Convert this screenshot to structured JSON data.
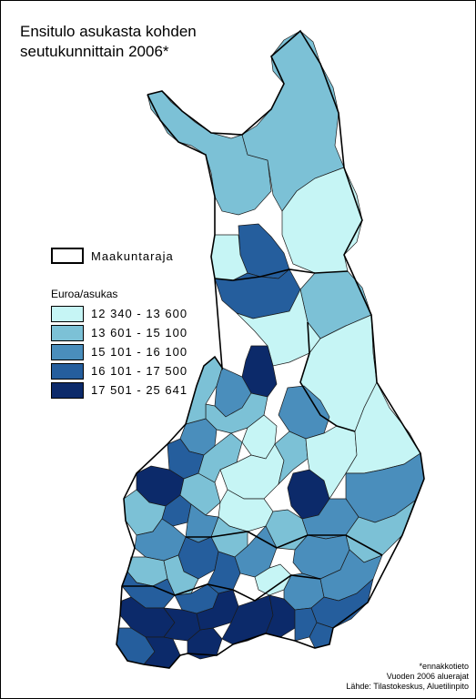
{
  "title": {
    "line1": "Ensitulo asukasta kohden",
    "line2": "seutukunnittain 2006*"
  },
  "legend": {
    "border_label": "Maakuntaraja",
    "heading": "Euroa/asukas",
    "classes": [
      {
        "label": "12 340 - 13 600",
        "color": "#c6f5f5"
      },
      {
        "label": "13 601 - 15 100",
        "color": "#7cc1d6"
      },
      {
        "label": "15 101 - 16 100",
        "color": "#4a8ebc"
      },
      {
        "label": "16 101 - 17 500",
        "color": "#255e9d"
      },
      {
        "label": "17 501 - 25 641",
        "color": "#0c2a6a"
      }
    ]
  },
  "notes": {
    "line1": "*ennakkotieto",
    "line2": "Vuoden 2006 aluerajat",
    "line3": "Lähde: Tilastokeskus, Aluetilinpito"
  }
}
